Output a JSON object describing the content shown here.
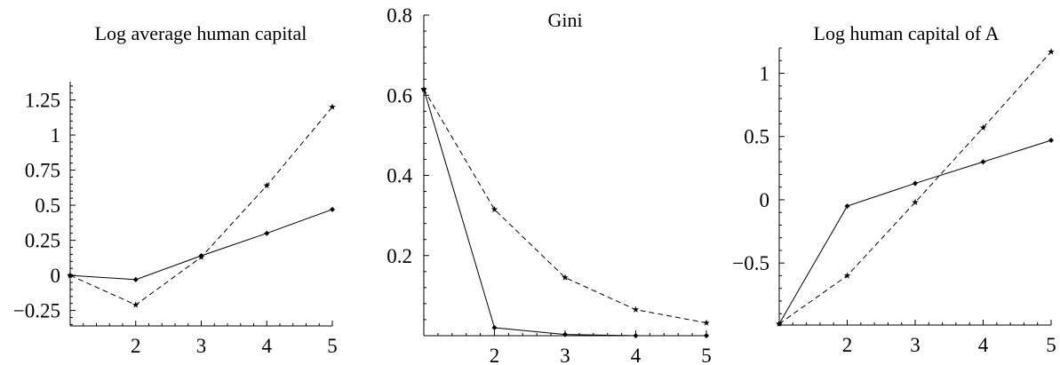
{
  "chart_data": [
    {
      "type": "line",
      "title": "Log average human capital",
      "xlabel": "",
      "ylabel": "",
      "x": [
        1,
        2,
        3,
        4,
        5
      ],
      "xlim": [
        1,
        5
      ],
      "ylim": [
        -0.36,
        1.38
      ],
      "x_ticks": [
        2,
        3,
        4,
        5
      ],
      "y_ticks": [
        -0.25,
        0,
        0.25,
        0.5,
        0.75,
        1,
        1.25
      ],
      "x_tick_labels": [
        "2",
        "3",
        "4",
        "5"
      ],
      "y_tick_labels": [
        "−0.25",
        "0",
        "0.25",
        "0.5",
        "0.75",
        "1",
        "1.25"
      ],
      "grid": false,
      "series": [
        {
          "style": "solid",
          "marker": "diamond",
          "values": [
            0.0,
            -0.03,
            0.14,
            0.3,
            0.47
          ]
        },
        {
          "style": "dashed",
          "marker": "star",
          "values": [
            0.0,
            -0.21,
            0.13,
            0.64,
            1.2
          ]
        }
      ]
    },
    {
      "type": "line",
      "title": "Gini",
      "xlabel": "",
      "ylabel": "",
      "x": [
        1,
        2,
        3,
        4,
        5
      ],
      "xlim": [
        1,
        5
      ],
      "ylim": [
        0,
        0.8
      ],
      "x_ticks": [
        2,
        3,
        4,
        5
      ],
      "y_ticks": [
        0.2,
        0.4,
        0.6,
        0.8
      ],
      "x_tick_labels": [
        "2",
        "3",
        "4",
        "5"
      ],
      "y_tick_labels": [
        "0.2",
        "0.4",
        "0.6",
        "0.8"
      ],
      "grid": false,
      "series": [
        {
          "style": "solid",
          "marker": "diamond",
          "values": [
            0.615,
            0.02,
            0.003,
            0.0,
            0.0
          ]
        },
        {
          "style": "dashed",
          "marker": "star",
          "values": [
            0.615,
            0.315,
            0.145,
            0.065,
            0.032
          ]
        }
      ]
    },
    {
      "type": "line",
      "title": "Log human capital of  A",
      "xlabel": "",
      "ylabel": "",
      "x": [
        1,
        2,
        3,
        4,
        5
      ],
      "xlim": [
        1,
        5
      ],
      "ylim": [
        -0.99,
        1.2
      ],
      "x_ticks": [
        2,
        3,
        4,
        5
      ],
      "y_ticks": [
        -0.5,
        0,
        0.5,
        1
      ],
      "x_tick_labels": [
        "2",
        "3",
        "4",
        "5"
      ],
      "y_tick_labels": [
        "−0.5",
        "0",
        "0.5",
        "1"
      ],
      "grid": false,
      "series": [
        {
          "style": "solid",
          "marker": "diamond",
          "values": [
            -0.98,
            -0.05,
            0.13,
            0.3,
            0.47
          ]
        },
        {
          "style": "dashed",
          "marker": "star",
          "values": [
            -0.98,
            -0.6,
            -0.02,
            0.57,
            1.17
          ]
        }
      ]
    }
  ]
}
